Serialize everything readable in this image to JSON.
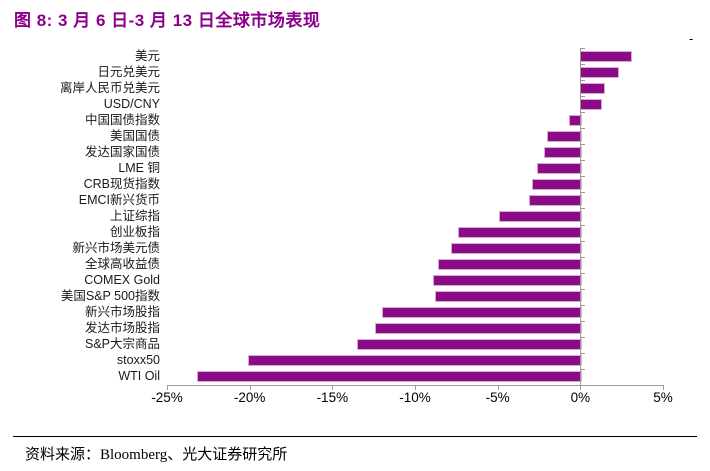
{
  "figure": {
    "title": "图 8: 3 月 6 日-3 月 13 日全球市场表现",
    "artifact_mark": "-",
    "source_note": "资料来源：Bloomberg、光大证券研究所"
  },
  "chart_data": {
    "type": "bar",
    "orientation": "horizontal",
    "title": "图 8: 3 月 6 日-3 月 13 日全球市场表现",
    "unit": "%",
    "categories": [
      "美元",
      "日元兑美元",
      "离岸人民币兑美元",
      "USD/CNY",
      "中国国债指数",
      "美国国债",
      "发达国家国债",
      "LME 铜",
      "CRB现货指数",
      "EMCI新兴货币",
      "上证综指",
      "创业板指",
      "新兴市场美元债",
      "全球高收益债",
      "COMEX Gold",
      "美国S&P 500指数",
      "新兴市场股指",
      "发达市场股指",
      "S&P大宗商品",
      "stoxx50",
      "WTI Oil"
    ],
    "values": [
      3.0,
      2.2,
      1.4,
      1.2,
      -0.7,
      -2.0,
      -2.2,
      -2.6,
      -2.9,
      -3.1,
      -4.9,
      -7.4,
      -7.8,
      -8.6,
      -8.9,
      -8.8,
      -12.0,
      -12.4,
      -13.5,
      -20.1,
      -23.2
    ],
    "xlim": [
      -25,
      5
    ],
    "x_tick_values": [
      -25,
      -20,
      -15,
      -10,
      -5,
      0,
      5
    ],
    "x_tick_labels": [
      "-25%",
      "-20%",
      "-15%",
      "-10%",
      "-5%",
      "0%",
      "5%"
    ],
    "grid": false,
    "legend": "none",
    "bar_color": "#8A0A88",
    "bar_border_color": "#D9A9D6",
    "axis_color": "#9B9B9B",
    "title_color": "#8B008B"
  }
}
